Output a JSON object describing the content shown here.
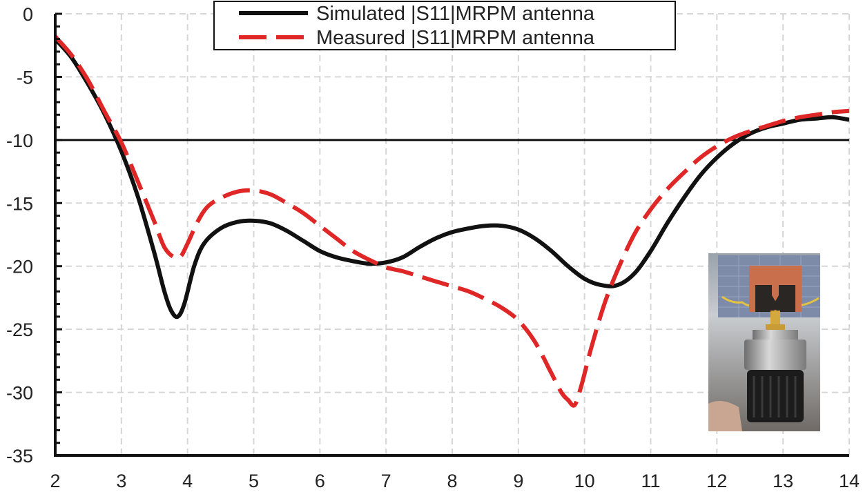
{
  "chart_data": {
    "type": "line",
    "title": "",
    "xlabel": "",
    "ylabel": "",
    "xlim": [
      2,
      14
    ],
    "ylim": [
      -35,
      0
    ],
    "x_ticks": [
      "2",
      "3",
      "4",
      "5",
      "6",
      "7",
      "8",
      "9",
      "10",
      "11",
      "12",
      "13",
      "14"
    ],
    "y_ticks": [
      "0",
      "-5",
      "-10",
      "-15",
      "-20",
      "-25",
      "-30",
      "-35"
    ],
    "grid": true,
    "legend_position": "top-center",
    "reference_line": {
      "y": -10,
      "color": "#111111"
    },
    "series": [
      {
        "name": "Simulated |S11|MRPM antenna",
        "color": "#111111",
        "style": "solid",
        "x": [
          2.0,
          2.25,
          2.5,
          2.75,
          3.0,
          3.25,
          3.5,
          3.65,
          3.75,
          3.85,
          3.95,
          4.1,
          4.25,
          4.5,
          4.75,
          5.0,
          5.25,
          5.5,
          5.75,
          6.0,
          6.25,
          6.5,
          6.75,
          7.0,
          7.25,
          7.5,
          7.75,
          8.0,
          8.25,
          8.5,
          8.75,
          9.0,
          9.25,
          9.5,
          9.75,
          10.0,
          10.25,
          10.5,
          10.75,
          11.0,
          11.25,
          11.5,
          11.75,
          12.0,
          12.25,
          12.5,
          12.75,
          13.0,
          13.25,
          13.5,
          13.75,
          14.0
        ],
        "values": [
          -2.0,
          -3.5,
          -5.6,
          -8.0,
          -10.9,
          -14.5,
          -19.0,
          -22.0,
          -23.5,
          -24.0,
          -23.0,
          -20.0,
          -18.2,
          -17.0,
          -16.5,
          -16.4,
          -16.6,
          -17.2,
          -18.0,
          -18.8,
          -19.3,
          -19.6,
          -19.8,
          -19.7,
          -19.3,
          -18.5,
          -17.8,
          -17.3,
          -17.0,
          -16.8,
          -16.8,
          -17.1,
          -17.8,
          -18.8,
          -20.0,
          -21.0,
          -21.5,
          -21.5,
          -20.6,
          -18.8,
          -16.6,
          -14.6,
          -12.8,
          -11.4,
          -10.3,
          -9.5,
          -9.0,
          -8.7,
          -8.4,
          -8.3,
          -8.2,
          -8.4
        ]
      },
      {
        "name": "Measured |S11|MRPM antenna",
        "color": "#e02727",
        "style": "dashed",
        "x": [
          2.0,
          2.25,
          2.5,
          2.75,
          3.0,
          3.25,
          3.5,
          3.65,
          3.8,
          3.9,
          4.0,
          4.15,
          4.3,
          4.5,
          4.75,
          5.0,
          5.25,
          5.5,
          5.75,
          6.0,
          6.25,
          6.5,
          6.75,
          7.0,
          7.25,
          7.5,
          7.75,
          8.0,
          8.25,
          8.5,
          8.75,
          9.0,
          9.25,
          9.5,
          9.65,
          9.75,
          9.85,
          9.95,
          10.1,
          10.3,
          10.5,
          10.75,
          11.0,
          11.25,
          11.5,
          11.75,
          12.0,
          12.25,
          12.5,
          12.75,
          13.0,
          13.25,
          13.5,
          13.75,
          14.0
        ],
        "values": [
          -1.8,
          -3.3,
          -5.3,
          -7.8,
          -10.2,
          -13.3,
          -16.5,
          -18.5,
          -19.3,
          -19.2,
          -18.2,
          -16.5,
          -15.3,
          -14.6,
          -14.1,
          -14.0,
          -14.3,
          -15.0,
          -15.8,
          -16.8,
          -17.8,
          -18.8,
          -19.5,
          -20.1,
          -20.4,
          -20.8,
          -21.2,
          -21.6,
          -22.0,
          -22.6,
          -23.3,
          -24.3,
          -26.0,
          -28.5,
          -30.0,
          -30.6,
          -31.0,
          -29.5,
          -26.5,
          -23.0,
          -20.3,
          -17.5,
          -15.5,
          -13.9,
          -12.6,
          -11.4,
          -10.5,
          -9.8,
          -9.3,
          -8.9,
          -8.5,
          -8.2,
          -8.0,
          -7.8,
          -7.7
        ]
      }
    ]
  }
}
